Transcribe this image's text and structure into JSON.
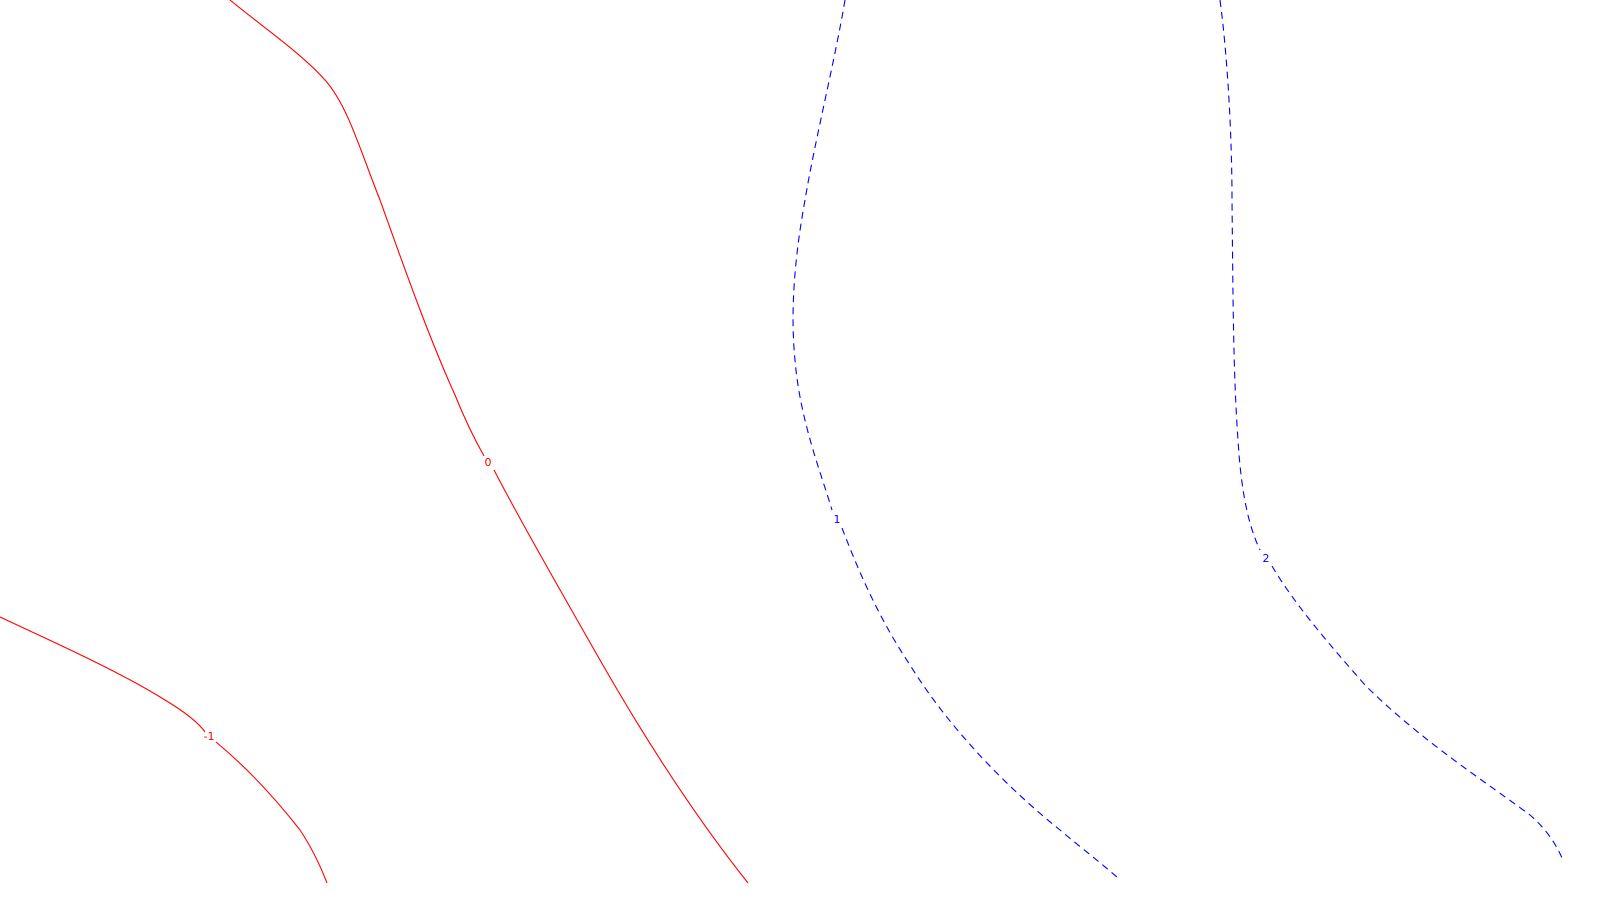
{
  "chart_data": {
    "type": "contour",
    "colors": {
      "negative_and_zero": "#ff0000",
      "positive": "#0000ff"
    },
    "levels": [
      {
        "label": "-1",
        "value": -1,
        "color": "#ff0000",
        "style": "solid"
      },
      {
        "label": "0",
        "value": 0,
        "color": "#ff0000",
        "style": "solid"
      },
      {
        "label": "1",
        "value": 1,
        "color": "#0000ff",
        "style": "dashed"
      },
      {
        "label": "2",
        "value": 2,
        "color": "#0000ff",
        "style": "dashed"
      }
    ]
  }
}
